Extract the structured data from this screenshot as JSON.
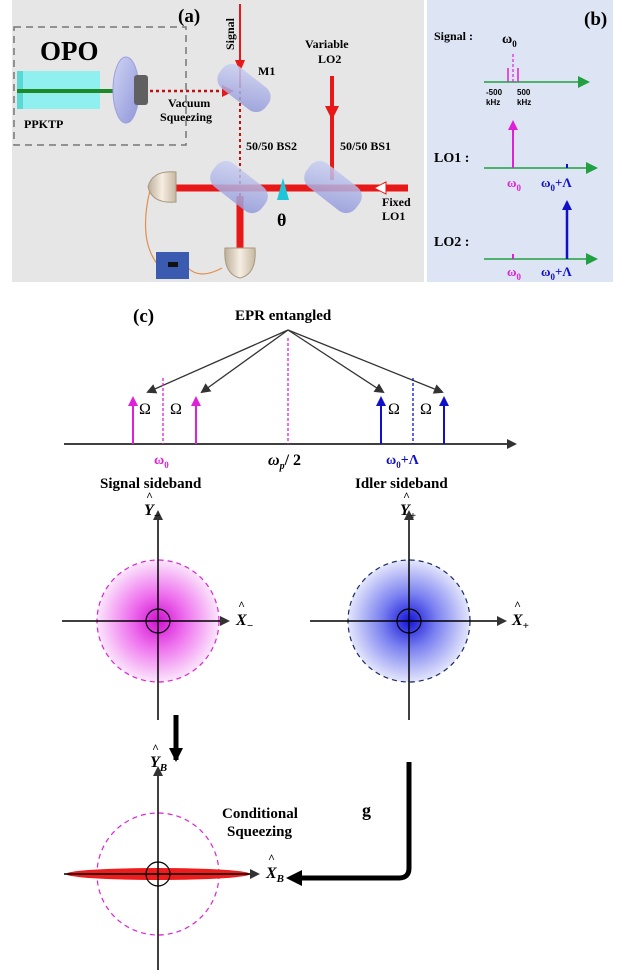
{
  "panel_a": {
    "label": "(a)",
    "opo": "OPO",
    "crystal": "PPKTP",
    "signal": "Signal",
    "m1": "M1",
    "vacuum_line1": "Vacuum",
    "vacuum_line2": "Squeezing",
    "variable_lo2_line1": "Variable",
    "variable_lo2_line2": "LO2",
    "bs2": "50/50 BS2",
    "bs1": "50/50 BS1",
    "fixed_lo1_line1": "Fixed",
    "fixed_lo1_line2": "LO1",
    "theta": "θ"
  },
  "panel_b": {
    "label": "(b)",
    "signal": "Signal :",
    "omega0_top": "ω",
    "omega0_top_sub": "0",
    "minus500": "-500",
    "plus500": "500",
    "khz_left": "kHz",
    "khz_right": "kHz",
    "lo1": "LO1 :",
    "lo2": "LO2 :",
    "omega0": "ω",
    "omega0_sub": "0",
    "omega_plus": "ω",
    "omega_plus_sub": "0",
    "omega_plus_tail": "+Λ"
  },
  "panel_c": {
    "label": "(c)",
    "epr": "EPR entangled",
    "Omega": "Ω",
    "omega0": "ω",
    "omega0_sub": "0",
    "omega_p": "ω",
    "omega_p_sub": "p",
    "omega_p_tail": "/ 2",
    "omega_l": "ω",
    "omega_l_sub": "0",
    "omega_l_tail": "+Λ",
    "signal_sideband": "Signal sideband",
    "idler_sideband": "Idler sideband",
    "y_minus": "Y",
    "y_minus_sub": "−",
    "x_minus": "X",
    "x_minus_sub": "−",
    "y_plus": "Y",
    "y_plus_sub": "+",
    "x_plus": "X",
    "x_plus_sub": "+",
    "y_b": "Y",
    "y_b_sub": "B",
    "x_b": "X",
    "x_b_sub": "B",
    "hat": "^",
    "g": "g",
    "conditional_line1": "Conditional",
    "conditional_line2": "Squeezing"
  },
  "colors": {
    "magenta": "#e020d8",
    "blue": "#1010c8",
    "red": "#e81818",
    "green": "#20a040",
    "panel_a_bg": "#e6e6e6",
    "panel_b_bg": "#dde4f4"
  }
}
